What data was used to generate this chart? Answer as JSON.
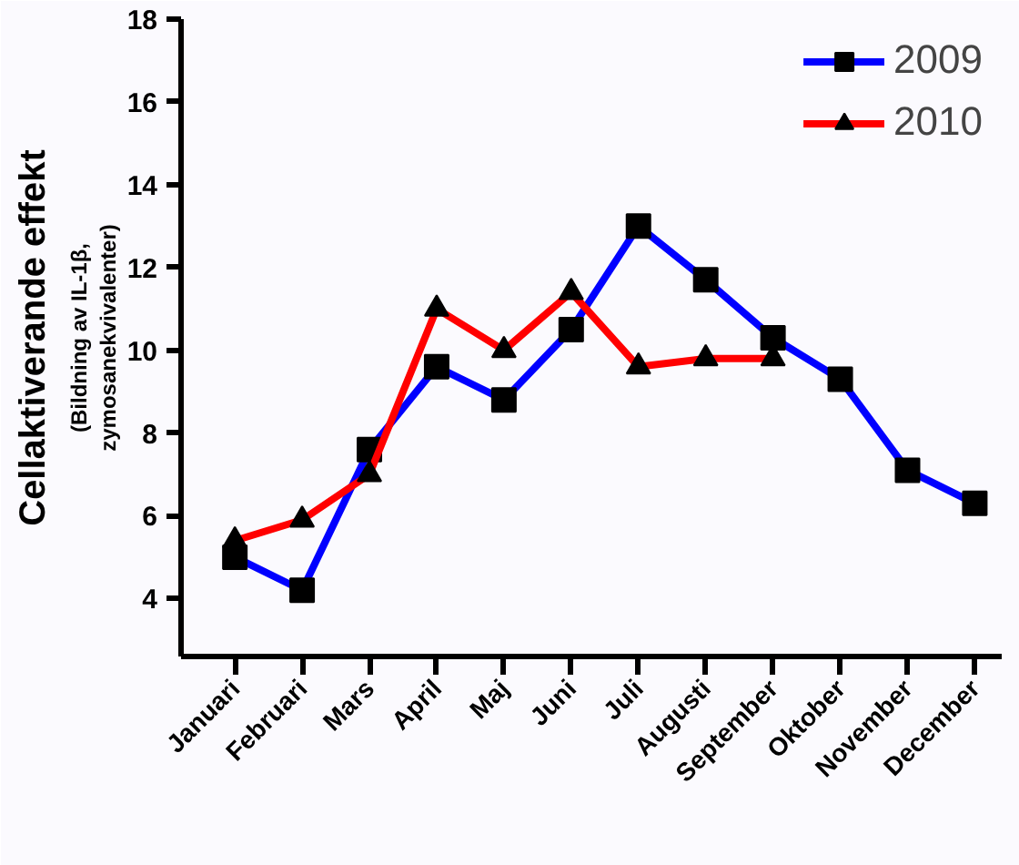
{
  "chart_data": {
    "type": "line",
    "ylabel": "Cellaktiverande effekt",
    "annotations": [
      "(Bildning av IL-1β,",
      "zymosanekvivalenter)"
    ],
    "categories": [
      "Januari",
      "Februari",
      "Mars",
      "April",
      "Maj",
      "Juni",
      "Juli",
      "Augusti",
      "September",
      "Oktober",
      "November",
      "December"
    ],
    "ylim": [
      2.6,
      18
    ],
    "yticks": [
      4,
      6,
      8,
      10,
      12,
      14,
      16,
      18
    ],
    "grid": false,
    "legend": "top right",
    "line_style": "solid",
    "series": [
      {
        "name": "2009",
        "color": "#0000ff",
        "marker": "square",
        "values": [
          5.0,
          4.2,
          7.6,
          9.6,
          8.8,
          10.5,
          13.0,
          11.7,
          10.3,
          9.3,
          7.1,
          6.3
        ]
      },
      {
        "name": "2010",
        "color": "#ff0000",
        "marker": "triangle",
        "values": [
          5.4,
          5.9,
          7.0,
          11.0,
          10.0,
          11.4,
          9.6,
          9.8,
          9.8,
          null,
          null,
          null
        ]
      }
    ]
  }
}
